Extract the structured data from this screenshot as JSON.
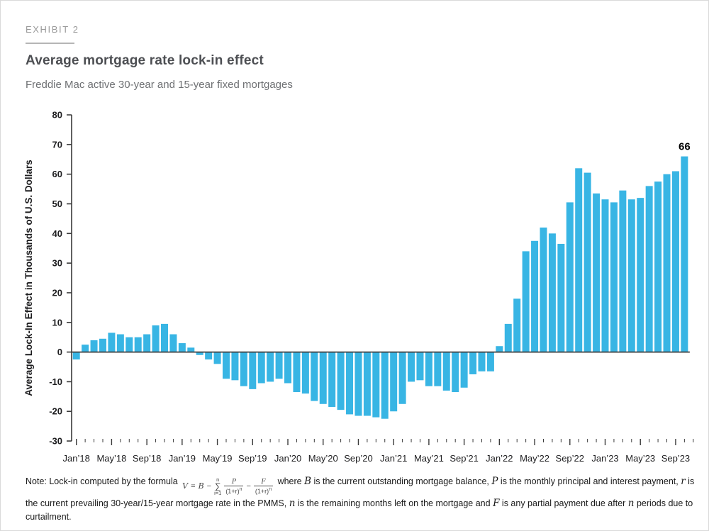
{
  "exhibit_label": "EXHIBIT 2",
  "title": "Average mortgage rate lock-in effect",
  "subtitle": "Freddie Mac active 30-year and 15-year fixed mortgages",
  "colors": {
    "bar": "#38b5e4",
    "zero_line": "#404040",
    "axis_line": "#3a3a3a",
    "axis_text": "#1d1d1f",
    "title": "#4d4f53",
    "subtitle": "#6e7073",
    "exhibit": "#9a9a9a"
  },
  "chart_data": {
    "type": "bar",
    "title": "Average mortgage rate lock-in effect",
    "xlabel": "",
    "ylabel": "Average Lock-In Effect in Thousands of U.S. Dollars",
    "ylim": [
      -30,
      80
    ],
    "yticks": [
      80,
      70,
      60,
      50,
      40,
      30,
      20,
      10,
      0,
      -10,
      -20,
      -30
    ],
    "grid": false,
    "legend": false,
    "x_major_tick_every": 4,
    "x_tick_labels": [
      "Jan’18",
      "May’18",
      "Sep’18",
      "Jan’19",
      "May’19",
      "Sep’19",
      "Jan’20",
      "May’20",
      "Sep’20",
      "Jan’21",
      "May’21",
      "Sep’21",
      "Jan’22",
      "May’22",
      "Sep’22",
      "Jan’23",
      "May’23",
      "Sep’23"
    ],
    "categories": [
      "Jan’18",
      "Feb’18",
      "Mar’18",
      "Apr’18",
      "May’18",
      "Jun’18",
      "Jul’18",
      "Aug’18",
      "Sep’18",
      "Oct’18",
      "Nov’18",
      "Dec’18",
      "Jan’19",
      "Feb’19",
      "Mar’19",
      "Apr’19",
      "May’19",
      "Jun’19",
      "Jul’19",
      "Aug’19",
      "Sep’19",
      "Oct’19",
      "Nov’19",
      "Dec’19",
      "Jan’20",
      "Feb’20",
      "Mar’20",
      "Apr’20",
      "May’20",
      "Jun’20",
      "Jul’20",
      "Aug’20",
      "Sep’20",
      "Oct’20",
      "Nov’20",
      "Dec’20",
      "Jan’21",
      "Feb’21",
      "Mar’21",
      "Apr’21",
      "May’21",
      "Jun’21",
      "Jul’21",
      "Aug’21",
      "Sep’21",
      "Oct’21",
      "Nov’21",
      "Dec’21",
      "Jan’22",
      "Feb’22",
      "Mar’22",
      "Apr’22",
      "May’22",
      "Jun’22",
      "Jul’22",
      "Aug’22",
      "Sep’22",
      "Oct’22",
      "Nov’22",
      "Dec’22",
      "Jan’23",
      "Feb’23",
      "Mar’23",
      "Apr’23",
      "May’23",
      "Jun’23",
      "Jul’23",
      "Aug’23",
      "Sep’23",
      "Oct’23"
    ],
    "values": [
      -2.5,
      2.5,
      4,
      4.5,
      6.5,
      6,
      5,
      5,
      6,
      9,
      9.5,
      6,
      3,
      1.5,
      -1,
      -2.5,
      -4,
      -9,
      -9.5,
      -11.5,
      -12.5,
      -10.5,
      -10,
      -9,
      -10.5,
      -13.5,
      -14,
      -16.5,
      -17.5,
      -18.5,
      -19.5,
      -21,
      -21.5,
      -21.5,
      -22,
      -22.5,
      -20,
      -17.5,
      -10,
      -9.5,
      -11.5,
      -11.5,
      -13,
      -13.5,
      -12,
      -7.5,
      -6.5,
      -6.5,
      2,
      9.5,
      18,
      34,
      37.5,
      42,
      40,
      36.5,
      50.5,
      62,
      60.5,
      53.5,
      51.5,
      50.5,
      54.5,
      51.5,
      52,
      56,
      57.5,
      60,
      61,
      66
    ],
    "annotation": {
      "category": "Oct’23",
      "label": "66"
    }
  },
  "note": {
    "runs": [
      {
        "t": "Note: Lock-in computed by the formula "
      },
      {
        "formula": true
      },
      {
        "t": " where "
      },
      {
        "t": "B",
        "math": true
      },
      {
        "t": " is the current outstanding mortgage balance, "
      },
      {
        "t": "P",
        "math": true
      },
      {
        "t": " is the monthly principal and interest payment, "
      },
      {
        "t": "r",
        "math": true
      },
      {
        "t": " is the current prevailing 30-year/15-year mortgage rate in the PMMS, "
      },
      {
        "t": "n",
        "math": true
      },
      {
        "t": " is the remaining months left on the mortgage and "
      },
      {
        "t": "F",
        "math": true
      },
      {
        "t": " is any partial payment due after "
      },
      {
        "t": "n",
        "math": true
      },
      {
        "t": " periods due to curtailment."
      }
    ],
    "formula": {
      "lhs": "V",
      "eq": "=",
      "term1": "B",
      "minus": "−",
      "sum": {
        "sym": "∑",
        "top": "n",
        "bottom": "i=1"
      },
      "frac1": {
        "num": "P",
        "den": "(1+r)",
        "exp": "n"
      },
      "minus2": "−",
      "frac2": {
        "num": "F",
        "den": "(1+r)",
        "exp": "n"
      }
    }
  }
}
